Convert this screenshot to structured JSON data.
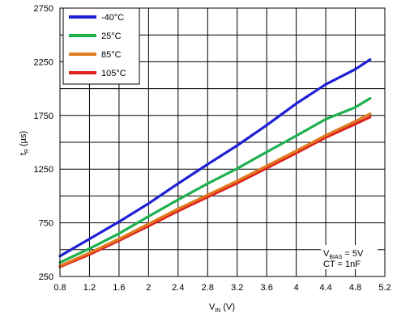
{
  "chart_data": {
    "type": "line",
    "xlabel": {
      "main": "V",
      "sub": "IN",
      "unit": " (V)"
    },
    "ylabel": {
      "main": "t",
      "sub": "R",
      "unit": " (µs)"
    },
    "xlim": [
      0.8,
      5.2
    ],
    "ylim": [
      250,
      2750
    ],
    "x_ticks": [
      "0.8",
      "1.2",
      "1.6",
      "2",
      "2.4",
      "2.8",
      "3.2",
      "3.6",
      "4",
      "4.4",
      "4.8",
      "5.2"
    ],
    "y_ticks": [
      "250",
      "750",
      "1250",
      "1750",
      "2250",
      "2750"
    ],
    "grid": true,
    "legend_position": "top-left",
    "series": [
      {
        "name": "-40°C",
        "color": "#1f1fd6",
        "x": [
          0.8,
          1.2,
          1.6,
          2.0,
          2.4,
          2.8,
          3.2,
          3.6,
          4.0,
          4.4,
          4.8,
          5.0
        ],
        "y": [
          440,
          600,
          760,
          930,
          1115,
          1295,
          1470,
          1660,
          1860,
          2040,
          2180,
          2270
        ]
      },
      {
        "name": "25°C",
        "color": "#1fb04e",
        "x": [
          0.8,
          1.2,
          1.6,
          2.0,
          2.4,
          2.8,
          3.2,
          3.6,
          4.0,
          4.4,
          4.8,
          5.0
        ],
        "y": [
          380,
          510,
          650,
          810,
          965,
          1115,
          1255,
          1410,
          1560,
          1715,
          1825,
          1910
        ]
      },
      {
        "name": "85°C",
        "color": "#e07b1f",
        "x": [
          0.8,
          1.2,
          1.6,
          2.0,
          2.4,
          2.8,
          3.2,
          3.6,
          4.0,
          4.4,
          4.8,
          5.0
        ],
        "y": [
          350,
          470,
          600,
          740,
          880,
          1010,
          1140,
          1280,
          1420,
          1565,
          1695,
          1765
        ]
      },
      {
        "name": "105°C",
        "color": "#e01f1f",
        "x": [
          0.8,
          1.2,
          1.6,
          2.0,
          2.4,
          2.8,
          3.2,
          3.6,
          4.0,
          4.4,
          4.8,
          5.0
        ],
        "y": [
          340,
          455,
          585,
          720,
          860,
          990,
          1120,
          1260,
          1400,
          1545,
          1670,
          1735
        ]
      }
    ],
    "annotation": {
      "line1_main": "V",
      "line1_sub": "BIAS",
      "line1_rest": " = 5V",
      "line2": "CT = 1nF"
    }
  }
}
